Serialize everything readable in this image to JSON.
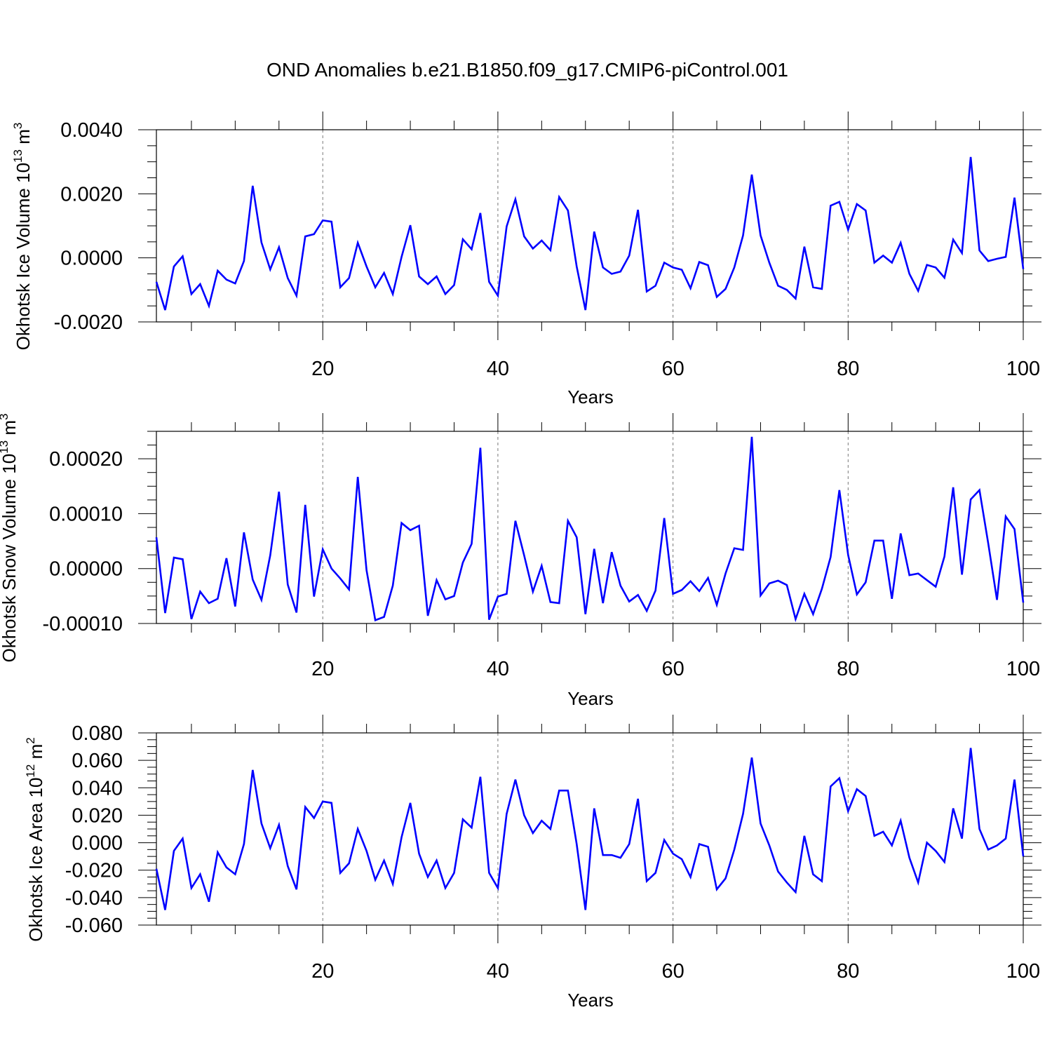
{
  "figure": {
    "title": "OND Anomalies b.e21.B1850.f09_g17.CMIP6-piControl.001"
  },
  "chart_data": [
    {
      "type": "line",
      "title": "",
      "xlabel": "Years",
      "ylabel": "Okhotsk Ice Volume 10^13 m^3",
      "ylabel_main": "Okhotsk Ice Volume 10",
      "ylabel_exp": "13",
      "ylabel_unit": " m",
      "ylabel_unit_exp": "3",
      "xlim": [
        1,
        100
      ],
      "ylim": [
        -0.002,
        0.004
      ],
      "xticks": [
        20,
        40,
        60,
        80,
        100
      ],
      "yticks": [
        -0.002,
        0.0,
        0.002,
        0.004
      ],
      "ytick_labels": [
        "-0.0020",
        "0.0000",
        "0.0020",
        "0.0040"
      ],
      "grid": "dashed vertical at major x ticks",
      "line_color": "#0000ff",
      "series": [
        {
          "values": [
            -0.00075,
            -0.00163,
            -0.00027,
            5e-05,
            -0.00113,
            -0.00082,
            -0.0015,
            -0.0004,
            -0.00068,
            -0.0008,
            -0.0001,
            0.00225,
            0.00048,
            -0.00036,
            0.00033,
            -0.00063,
            -0.00118,
            0.00067,
            0.00074,
            0.00117,
            0.00113,
            -0.00092,
            -0.00063,
            0.00047,
            -0.00027,
            -0.00092,
            -0.00047,
            -0.00113,
            3e-05,
            0.00102,
            -0.00058,
            -0.00082,
            -0.00058,
            -0.00113,
            -0.00085,
            0.00058,
            0.00027,
            0.0014,
            -0.00075,
            -0.00118,
            0.00098,
            0.00183,
            0.00067,
            0.00029,
            0.00054,
            0.00024,
            0.0019,
            0.00148,
            -0.00027,
            -0.00163,
            0.00082,
            -0.0003,
            -0.0005,
            -0.00043,
            7e-05,
            0.0015,
            -0.00105,
            -0.00087,
            -0.00015,
            -0.0003,
            -0.00037,
            -0.00095,
            -0.00013,
            -0.00023,
            -0.00122,
            -0.00097,
            -0.0003,
            0.0007,
            0.0026,
            0.0007,
            -0.00015,
            -0.00087,
            -0.001,
            -0.00127,
            0.00035,
            -0.00092,
            -0.00097,
            0.00163,
            0.00175,
            0.00088,
            0.00168,
            0.00148,
            -0.00015,
            7e-05,
            -0.00015,
            0.00047,
            -0.0005,
            -0.00103,
            -0.00022,
            -0.0003,
            -0.00062,
            0.00057,
            0.00015,
            0.00315,
            0.00023,
            -0.0001,
            -3e-05,
            3e-05,
            0.00188,
            -0.00035
          ]
        }
      ]
    },
    {
      "type": "line",
      "title": "",
      "xlabel": "Years",
      "ylabel": "Okhotsk Snow Volume 10^13 m^3",
      "ylabel_main": "Okhotsk Snow Volume 10",
      "ylabel_exp": "13",
      "ylabel_unit": " m",
      "ylabel_unit_exp": "3",
      "xlim": [
        1,
        100
      ],
      "ylim": [
        -0.0001,
        0.00025
      ],
      "xticks": [
        20,
        40,
        60,
        80,
        100
      ],
      "yticks": [
        -0.0001,
        0.0,
        0.0001,
        0.0002
      ],
      "ytick_labels": [
        "-0.00010",
        "0.00000",
        "0.00010",
        "0.00020"
      ],
      "grid": "dashed vertical at major x ticks",
      "line_color": "#0000ff",
      "series": [
        {
          "values": [
            5.7e-05,
            -8.1e-05,
            2e-05,
            1.7e-05,
            -9.2e-05,
            -4.2e-05,
            -6.3e-05,
            -5.5e-05,
            1.9e-05,
            -6.9e-05,
            6.6e-05,
            -2e-05,
            -5.7e-05,
            2.4e-05,
            0.00014,
            -2.9e-05,
            -8e-05,
            0.000116,
            -5.1e-05,
            3.5e-05,
            0.0,
            -1.8e-05,
            -3.8e-05,
            0.000167,
            -3e-06,
            -9.4e-05,
            -8.8e-05,
            -3.1e-05,
            8.3e-05,
            7e-05,
            7.8e-05,
            -8.6e-05,
            -2.1e-05,
            -5.6e-05,
            -5e-05,
            1.1e-05,
            4.5e-05,
            0.00022,
            -9.3e-05,
            -5.1e-05,
            -4.6e-05,
            8.7e-05,
            2.4e-05,
            -4.2e-05,
            5e-06,
            -6.1e-05,
            -6.3e-05,
            8.7e-05,
            5.7e-05,
            -8.3e-05,
            3.6e-05,
            -6.3e-05,
            3e-05,
            -3.1e-05,
            -6e-05,
            -4.8e-05,
            -7.7e-05,
            -4e-05,
            9.2e-05,
            -4.6e-05,
            -3.9e-05,
            -2.3e-05,
            -4.1e-05,
            -1.7e-05,
            -6.6e-05,
            -9e-06,
            3.7e-05,
            3.4e-05,
            0.00024,
            -4.9e-05,
            -2.7e-05,
            -2.2e-05,
            -3e-05,
            -9.2e-05,
            -4.6e-05,
            -8.3e-05,
            -3.7e-05,
            2.1e-05,
            0.000143,
            2.5e-05,
            -4.7e-05,
            -2.5e-05,
            5.1e-05,
            5.1e-05,
            -5.5e-05,
            6.4e-05,
            -1.2e-05,
            -9e-06,
            -2.1e-05,
            -3.3e-05,
            2.2e-05,
            0.000148,
            -1.1e-05,
            0.000126,
            0.000143,
            4.6e-05,
            -5.7e-05,
            9.5e-05,
            7.2e-05,
            -6.2e-05
          ]
        }
      ]
    },
    {
      "type": "line",
      "title": "",
      "xlabel": "Years",
      "ylabel": "Okhotsk Ice Area 10^12 m^2",
      "ylabel_main": "Okhotsk Ice Area 10",
      "ylabel_exp": "12",
      "ylabel_unit": " m",
      "ylabel_unit_exp": "2",
      "xlim": [
        1,
        100
      ],
      "ylim": [
        -0.06,
        0.08
      ],
      "xticks": [
        20,
        40,
        60,
        80,
        100
      ],
      "yticks": [
        -0.06,
        -0.04,
        -0.02,
        0.0,
        0.02,
        0.04,
        0.06,
        0.08
      ],
      "ytick_labels": [
        "-0.060",
        "-0.040",
        "-0.020",
        "0.000",
        "0.020",
        "0.040",
        "0.060",
        "0.080"
      ],
      "grid": "dashed vertical at major x ticks",
      "line_color": "#0000ff",
      "series": [
        {
          "values": [
            -0.019,
            -0.049,
            -0.006,
            0.003,
            -0.033,
            -0.023,
            -0.043,
            -0.007,
            -0.018,
            -0.023,
            -0.001,
            0.053,
            0.014,
            -0.004,
            0.013,
            -0.017,
            -0.034,
            0.026,
            0.018,
            0.03,
            0.029,
            -0.022,
            -0.015,
            0.01,
            -0.006,
            -0.027,
            -0.013,
            -0.03,
            0.004,
            0.029,
            -0.008,
            -0.025,
            -0.013,
            -0.033,
            -0.022,
            0.017,
            0.011,
            0.048,
            -0.022,
            -0.033,
            0.021,
            0.046,
            0.02,
            0.007,
            0.016,
            0.01,
            0.038,
            0.038,
            -0.001,
            -0.049,
            0.025,
            -0.009,
            -0.009,
            -0.011,
            -0.001,
            0.032,
            -0.028,
            -0.022,
            0.002,
            -0.008,
            -0.012,
            -0.025,
            -0.001,
            -0.003,
            -0.034,
            -0.026,
            -0.005,
            0.021,
            0.062,
            0.014,
            -0.002,
            -0.021,
            -0.029,
            -0.036,
            0.005,
            -0.023,
            -0.028,
            0.041,
            0.047,
            0.023,
            0.039,
            0.034,
            0.005,
            0.008,
            -0.002,
            0.016,
            -0.011,
            -0.029,
            0.0,
            -0.006,
            -0.014,
            0.025,
            0.003,
            0.069,
            0.01,
            -0.005,
            -0.002,
            0.003,
            0.046,
            -0.01
          ]
        }
      ]
    }
  ]
}
